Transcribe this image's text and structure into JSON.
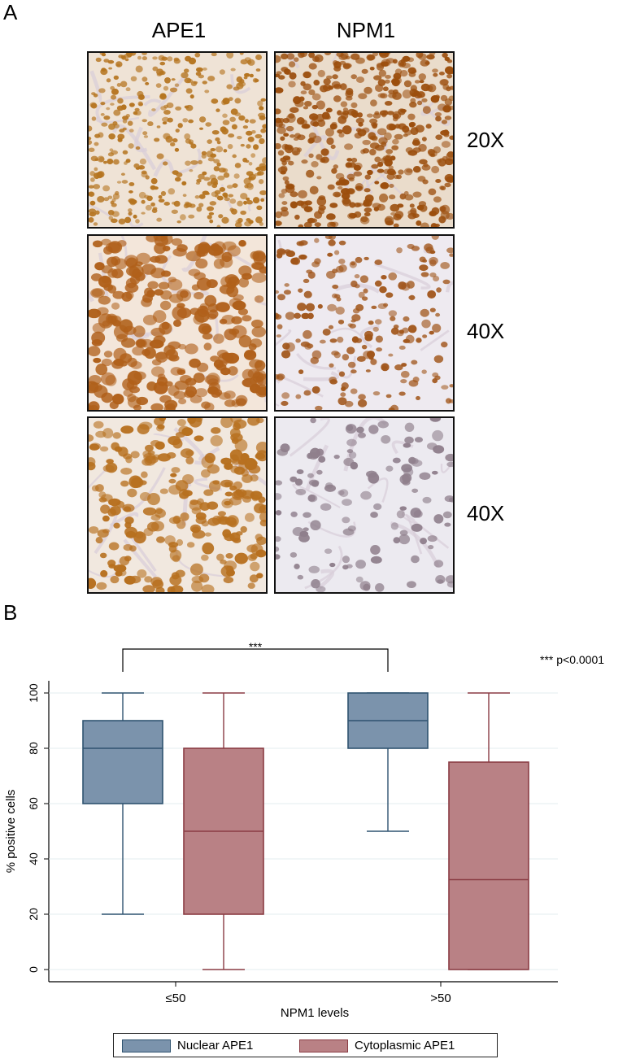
{
  "panel_a": {
    "label": "A",
    "columns": [
      "APE1",
      "NPM1"
    ],
    "rows": [
      "20X",
      "40X",
      "40X"
    ],
    "images": [
      {
        "name": "ape1-20x-image",
        "stain": "#b5741f",
        "bg": "#efe3d6",
        "density": 0.55,
        "size": 4
      },
      {
        "name": "npm1-20x-image",
        "stain": "#9c4f0e",
        "bg": "#eadccb",
        "density": 0.8,
        "size": 5
      },
      {
        "name": "ape1-40x-image",
        "stain": "#b0601a",
        "bg": "#f3e6da",
        "density": 0.75,
        "size": 8
      },
      {
        "name": "npm1-40x-image",
        "stain": "#a1561b",
        "bg": "#eeeaf0",
        "density": 0.35,
        "size": 5
      },
      {
        "name": "ape1-40x-b-image",
        "stain": "#b7701f",
        "bg": "#f1e8df",
        "density": 0.6,
        "size": 7
      },
      {
        "name": "npm1-40x-b-image",
        "stain": "#8f7f8c",
        "bg": "#eceaf0",
        "density": 0.25,
        "size": 6
      }
    ]
  },
  "panel_b": {
    "label": "B",
    "significance_note": "*** p<0.0001",
    "significance_marker": "***"
  },
  "chart_data": {
    "type": "box",
    "title": "",
    "xlabel": "NPM1 levels",
    "ylabel": "% positive cells",
    "categories": [
      "≤50",
      ">50"
    ],
    "ylim": [
      0,
      100
    ],
    "yticks": [
      0,
      20,
      40,
      60,
      80,
      100
    ],
    "grid": true,
    "legend_position": "bottom",
    "series": [
      {
        "name": "Nuclear APE1",
        "color": "#7b93ac",
        "stroke": "#2f5370",
        "boxes": [
          {
            "category": "≤50",
            "min": 20,
            "q1": 60,
            "median": 80,
            "q3": 90,
            "max": 100
          },
          {
            "category": ">50",
            "min": 50,
            "q1": 80,
            "median": 90,
            "q3": 100,
            "max": 100
          }
        ]
      },
      {
        "name": "Cytoplasmic APE1",
        "color": "#b98185",
        "stroke": "#8a3c44",
        "boxes": [
          {
            "category": "≤50",
            "min": 0,
            "q1": 20,
            "median": 50,
            "q3": 80,
            "max": 100
          },
          {
            "category": ">50",
            "min": 0,
            "q1": 0,
            "median": 32.5,
            "q3": 75,
            "max": 100
          }
        ]
      }
    ]
  }
}
